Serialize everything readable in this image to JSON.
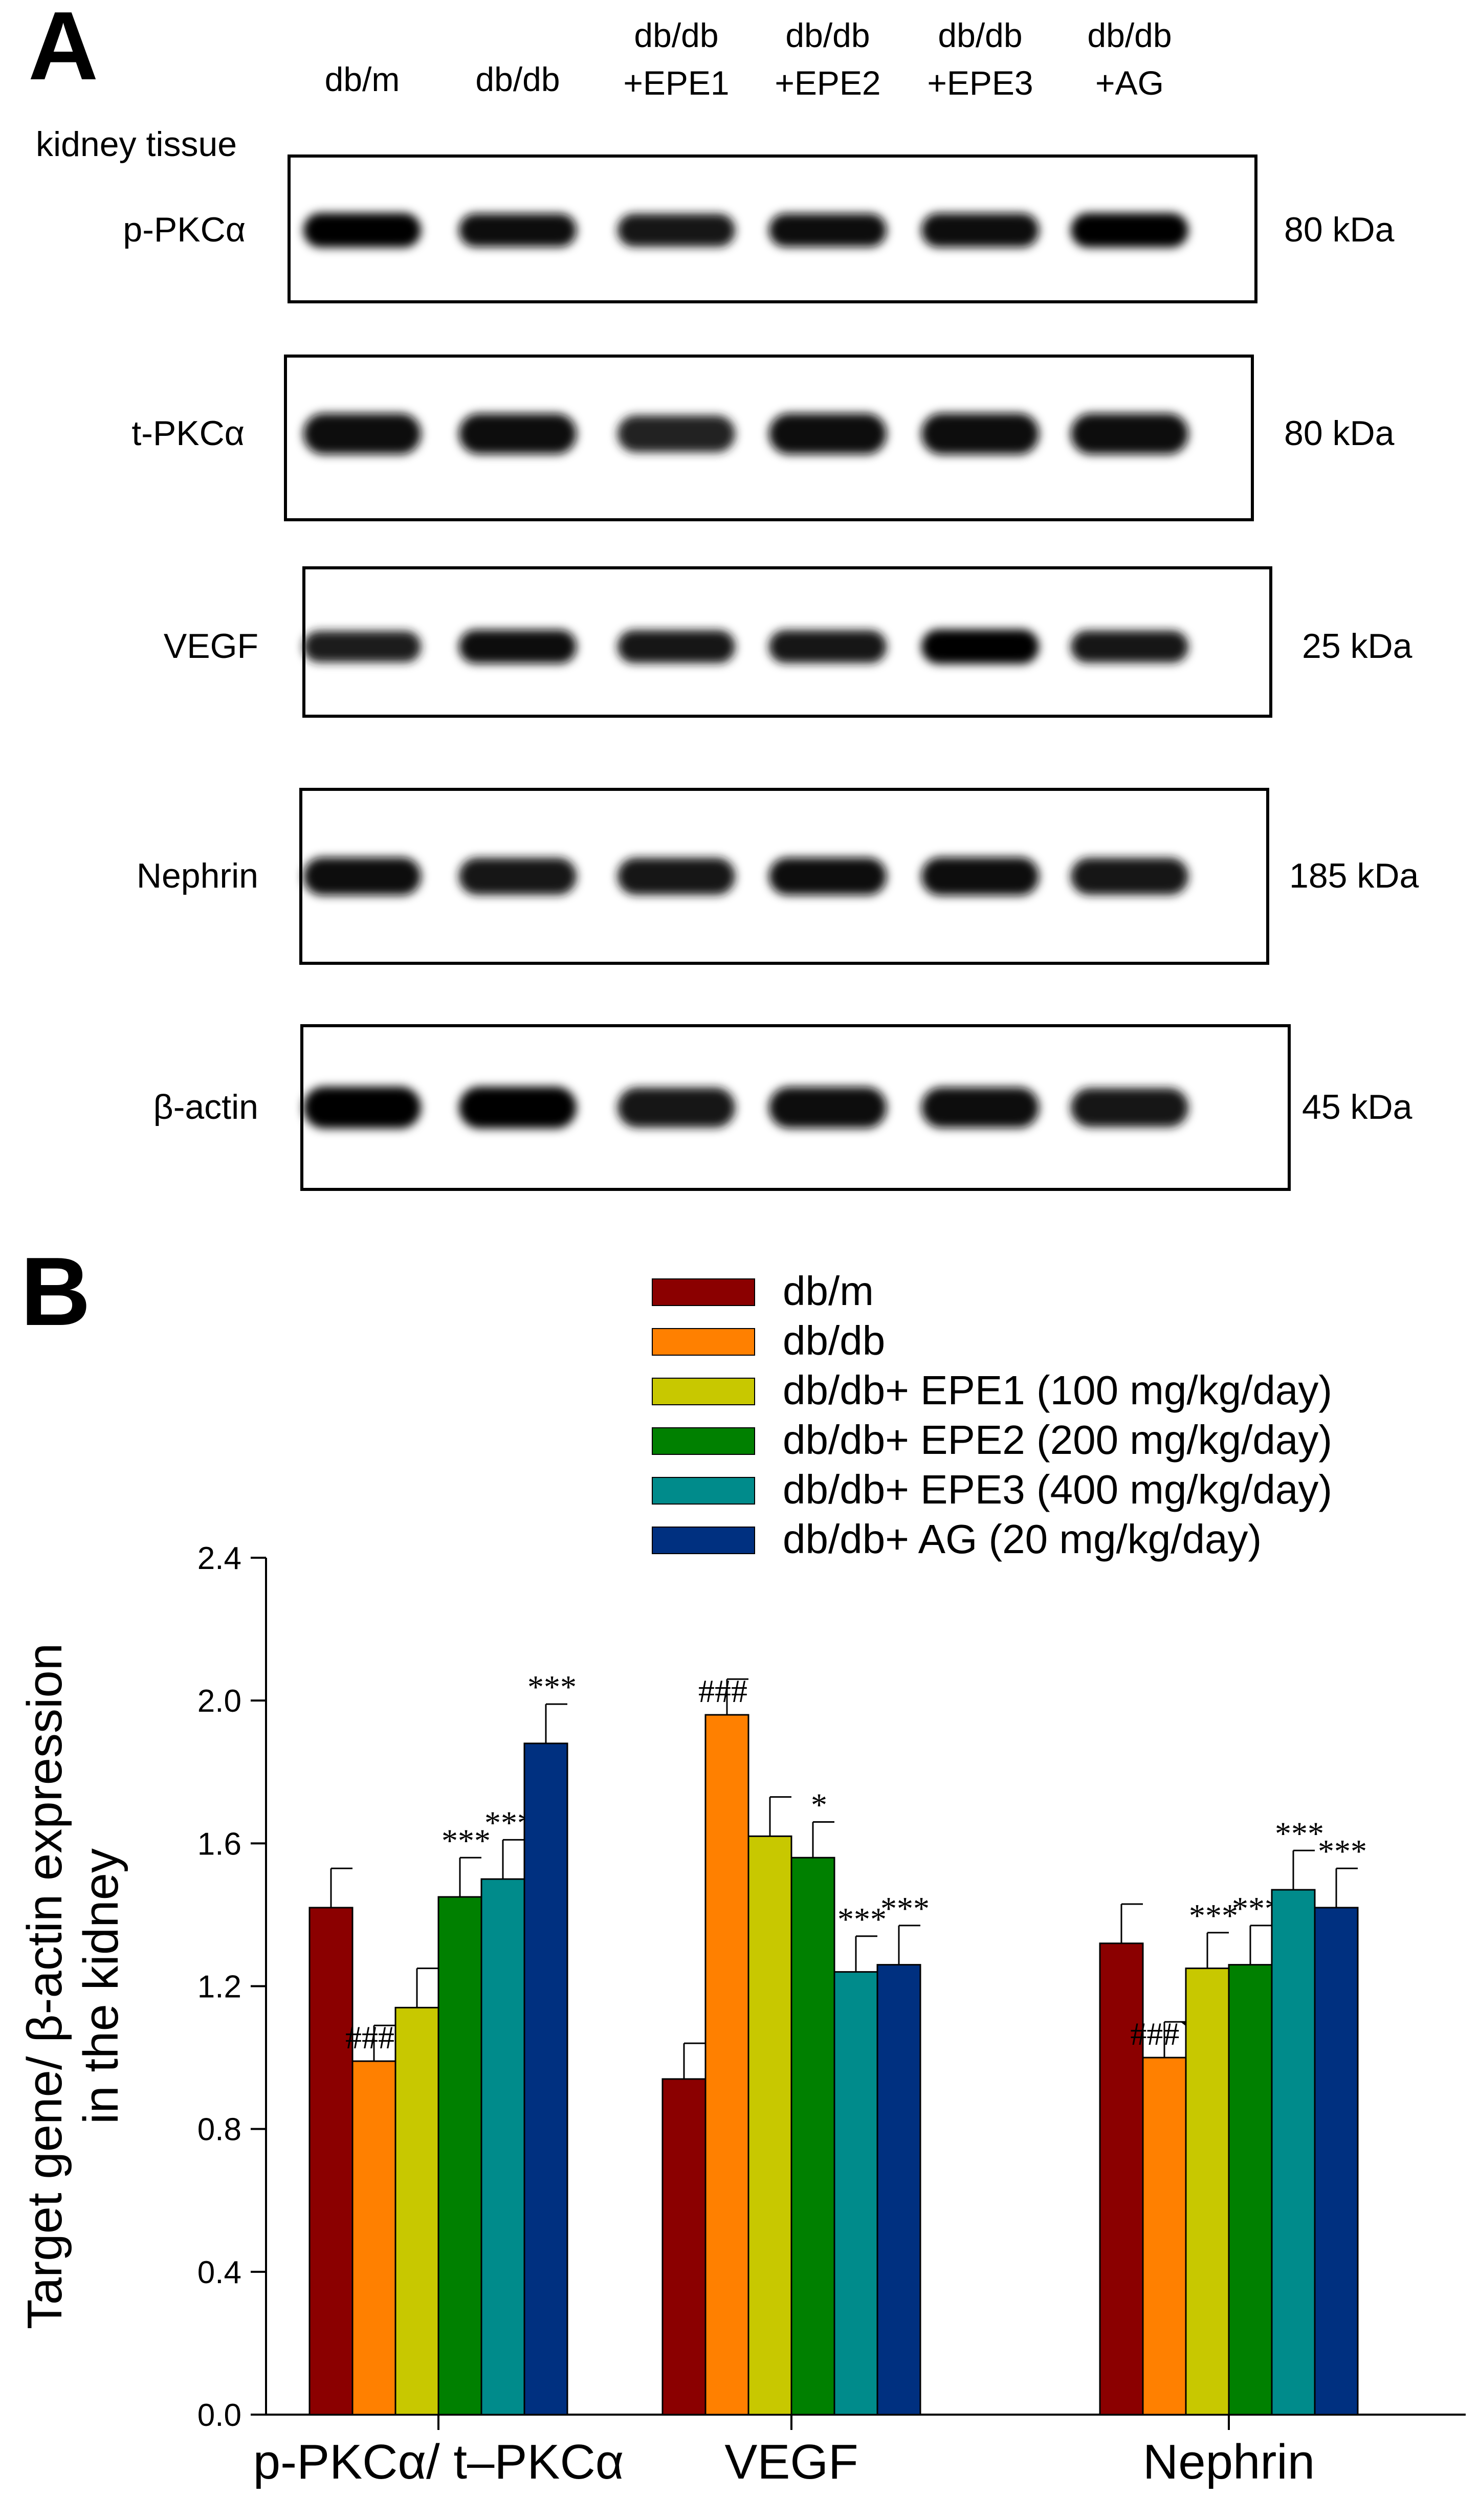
{
  "panel_a": {
    "letter": "A",
    "tissue_label": "kidney tissue",
    "lanes": [
      {
        "line1": "db/m",
        "line2": ""
      },
      {
        "line1": "db/db",
        "line2": ""
      },
      {
        "line1": "db/db",
        "line2": "+EPE1"
      },
      {
        "line1": "db/db",
        "line2": "+EPE2"
      },
      {
        "line1": "db/db",
        "line2": "+EPE3"
      },
      {
        "line1": "db/db",
        "line2": "+AG"
      }
    ],
    "blots": [
      {
        "protein": "p-PKCα",
        "size": "80 kDa",
        "band_intensity": [
          0.95,
          0.88,
          0.85,
          0.88,
          0.92,
          0.95
        ]
      },
      {
        "protein": "t-PKCα",
        "size": "80 kDa",
        "band_intensity": [
          0.9,
          0.88,
          0.7,
          0.9,
          0.92,
          0.9
        ]
      },
      {
        "protein": "VEGF",
        "size": "25 kDa",
        "band_intensity": [
          0.75,
          0.9,
          0.85,
          0.85,
          0.95,
          0.8
        ]
      },
      {
        "protein": "Nephrin",
        "size": "185 kDa",
        "band_intensity": [
          0.9,
          0.85,
          0.85,
          0.88,
          0.92,
          0.85
        ]
      },
      {
        "protein": "β-actin",
        "size": "45 kDa",
        "band_intensity": [
          0.95,
          0.95,
          0.85,
          0.92,
          0.88,
          0.8
        ]
      }
    ]
  },
  "panel_b": {
    "letter": "B"
  },
  "chart_data": {
    "type": "bar",
    "title": "",
    "ylabel_line1": "Target gene/ β-actin expression",
    "ylabel_line2": "in the kidney",
    "xlabel": "",
    "ylim": [
      0.0,
      2.4
    ],
    "yticks": [
      "0.0",
      "0.4",
      "0.8",
      "1.2",
      "1.6",
      "2.0",
      "2.4"
    ],
    "categories": [
      "p-PKCα/ t–PKCα",
      "VEGF",
      "Nephrin"
    ],
    "legend_position": "top-right",
    "grid": false,
    "series": [
      {
        "name": "db/m",
        "color": "#8b0000",
        "values": [
          1.42,
          0.94,
          1.32
        ],
        "errors": [
          0.11,
          0.1,
          0.11
        ],
        "annotations": [
          "",
          "",
          ""
        ]
      },
      {
        "name": "db/db",
        "color": "#ff8000",
        "values": [
          0.99,
          1.96,
          1.0
        ],
        "errors": [
          0.1,
          0.1,
          0.1
        ],
        "annotations": [
          "###",
          "###",
          "###`"
        ]
      },
      {
        "name": "db/db+ EPE1 (100 mg/kg/day)",
        "color": "#c8c800",
        "values": [
          1.14,
          1.62,
          1.25
        ],
        "errors": [
          0.11,
          0.11,
          0.1
        ],
        "annotations": [
          "",
          "",
          "***"
        ]
      },
      {
        "name": "db/db+ EPE2 (200 mg/kg/day)",
        "color": "#008000",
        "values": [
          1.45,
          1.56,
          1.26
        ],
        "errors": [
          0.11,
          0.1,
          0.11
        ],
        "annotations": [
          "***",
          "*",
          "***"
        ]
      },
      {
        "name": "db/db+ EPE3 (400 mg/kg/day)",
        "color": "#008b8b",
        "values": [
          1.5,
          1.24,
          1.47
        ],
        "errors": [
          0.11,
          0.1,
          0.11
        ],
        "annotations": [
          "***",
          "***",
          "***"
        ]
      },
      {
        "name": "db/db+ AG (20 mg/kg/day)",
        "color": "#003080",
        "values": [
          1.88,
          1.26,
          1.42
        ],
        "errors": [
          0.11,
          0.11,
          0.11
        ],
        "annotations": [
          "***",
          "***",
          "***"
        ]
      }
    ]
  }
}
